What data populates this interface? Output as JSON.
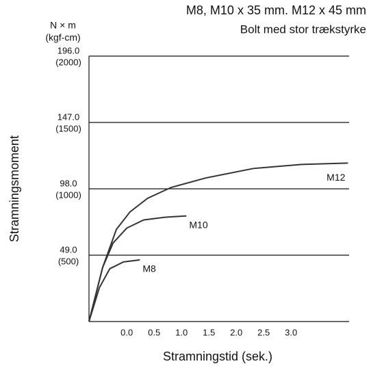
{
  "chart_data": {
    "type": "line",
    "subtitle": "M8, M10 x 35 mm. M12 x 45 mm",
    "note": "Bolt med stor trækstyrke",
    "y_unit": "N × m",
    "y2_unit": "(kgf-cm)",
    "ylabel": "Stramningsmoment",
    "xlabel": "Stramningstid (sek.)",
    "xlim": [
      -0.69,
      4.06
    ],
    "xticks": [
      {
        "value": 0.0,
        "label": "0.0"
      },
      0.5,
      {
        "value": 1.0,
        "label": "1.0"
      },
      1.5,
      {
        "value": 2.0,
        "label": "2.0"
      },
      2.5,
      {
        "value": 3.0,
        "label": "3.0"
      }
    ],
    "ylim": [
      0,
      196
    ],
    "yticks": [
      {
        "value": 49,
        "label": "49.0"
      },
      {
        "value": 98,
        "label": "98.0"
      },
      {
        "value": 147,
        "label": "147.0"
      },
      {
        "value": 196,
        "label": "196.0"
      }
    ],
    "y2lim": [
      0,
      2000
    ],
    "y2ticks": [
      {
        "value": 500,
        "label": "(500)"
      },
      {
        "value": 1000,
        "label": "(1000)"
      },
      {
        "value": 1500,
        "label": "(1500)"
      },
      {
        "value": 2000,
        "label": "(2000)"
      }
    ],
    "grid": true,
    "series": [
      {
        "name": "M12",
        "color": "#333333",
        "x": [
          -0.69,
          -0.44,
          -0.19,
          0.06,
          0.38,
          0.81,
          1.44,
          2.31,
          3.19,
          4.04
        ],
        "values": [
          0,
          40,
          68,
          81,
          91,
          99,
          106,
          113,
          116,
          117
        ]
      },
      {
        "name": "M10",
        "color": "#333333",
        "x": [
          -0.69,
          -0.44,
          -0.25,
          0.0,
          0.31,
          0.69,
          1.09
        ],
        "values": [
          0,
          40,
          58,
          69,
          75,
          77,
          78
        ]
      },
      {
        "name": "M8",
        "color": "#333333",
        "x": [
          -0.69,
          -0.5,
          -0.31,
          -0.06,
          0.24
        ],
        "values": [
          0,
          25,
          39,
          44,
          45.5
        ]
      }
    ]
  }
}
